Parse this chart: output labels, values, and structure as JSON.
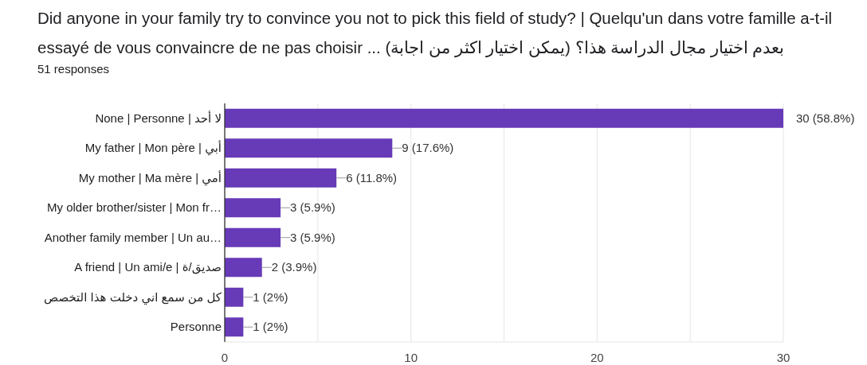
{
  "chart_data": {
    "type": "bar",
    "orientation": "horizontal",
    "title": "Did anyone in your family try to convince you not to pick this field of study? | Quelqu'un dans votre famille a-t-il essayé de vous convaincre de ne pas choisir ... بعدم اختيار مجال الدراسة هذا؟ (يمكن اختيار اكثر من اجابة)",
    "subtitle": "51 responses",
    "categories": [
      "None | Personne | لا أحد",
      "My father | Mon père | أبي",
      "My mother | Ma mère | أمي",
      "My older brother/sister | Mon fr…",
      "Another family member | Un au…",
      "A friend | Un ami/e | صديق/ة",
      "كل من سمع اني دخلت هذا التخصص",
      "Personne"
    ],
    "values": [
      30,
      9,
      6,
      3,
      3,
      2,
      1,
      1
    ],
    "value_labels": [
      "30 (58.8%)",
      "9 (17.6%)",
      "6 (11.8%)",
      "3 (5.9%)",
      "3 (5.9%)",
      "2 (3.9%)",
      "1 (2%)",
      "1 (2%)"
    ],
    "color": "#673ab7",
    "xlim": [
      0,
      30
    ],
    "xticks": [
      0,
      {
        "value": 5,
        "label": null
      },
      10,
      {
        "value": 15,
        "label": null
      },
      20,
      {
        "value": 25,
        "label": null
      },
      30
    ],
    "grid": "x"
  }
}
